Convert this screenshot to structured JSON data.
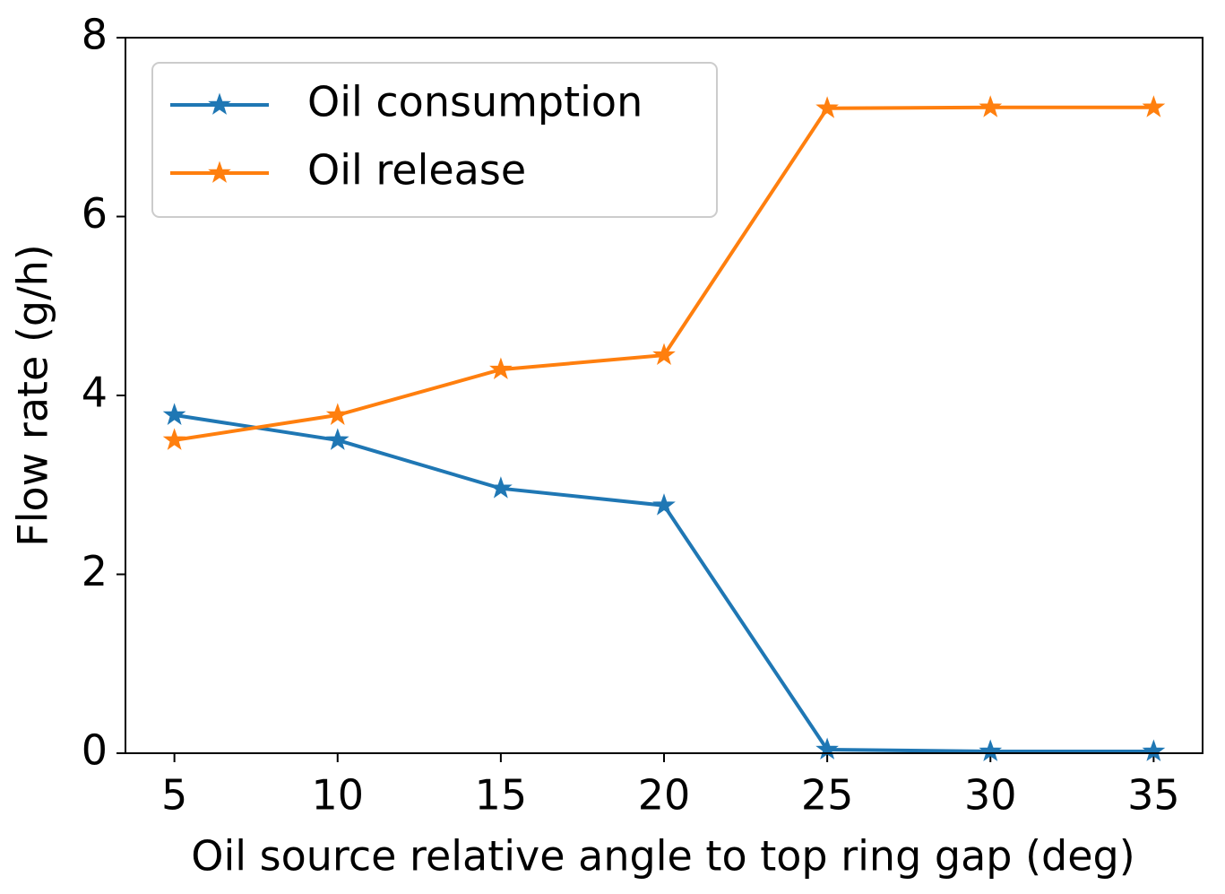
{
  "chart_data": {
    "type": "line",
    "x_label": "Oil source relative angle to top ring gap (deg)",
    "y_label": "Flow rate (g/h)",
    "x": [
      5,
      10,
      15,
      20,
      25,
      30,
      35
    ],
    "series": [
      {
        "name": "Oil consumption",
        "color": "#1f77b4",
        "values": [
          3.78,
          3.5,
          2.96,
          2.77,
          0.04,
          0.02,
          0.02
        ]
      },
      {
        "name": "Oil release",
        "color": "#ff7f0e",
        "values": [
          3.5,
          3.78,
          4.29,
          4.45,
          7.21,
          7.22,
          7.22
        ]
      }
    ],
    "xlim": [
      3.5,
      36.5
    ],
    "ylim": [
      0,
      8
    ],
    "xticks": [
      5,
      10,
      15,
      20,
      25,
      30,
      35
    ],
    "yticks": [
      0,
      2,
      4,
      6,
      8
    ],
    "legend": "upper left",
    "grid": false
  }
}
